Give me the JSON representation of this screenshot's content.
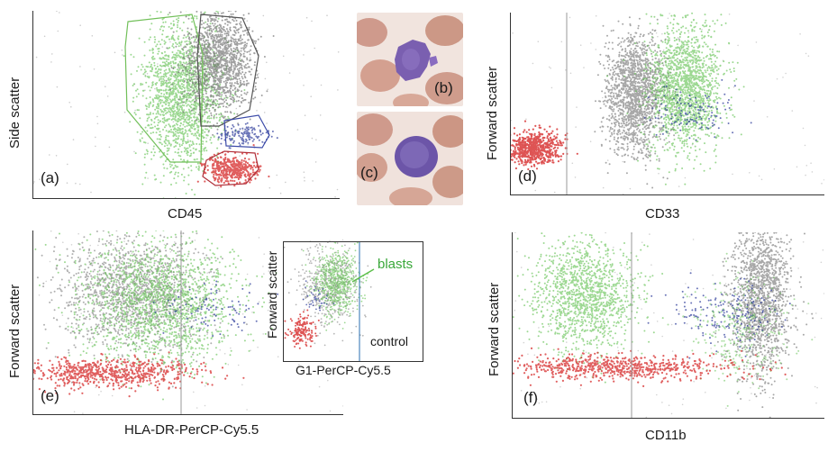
{
  "panels": {
    "a": {
      "label": "(a)",
      "ylabel": "Side scatter",
      "xlabel": "CD45"
    },
    "b": {
      "label": "(b)"
    },
    "c": {
      "label": "(c)"
    },
    "d": {
      "label": "(d)",
      "ylabel": "Forward scatter",
      "xlabel": "CD33"
    },
    "e": {
      "label": "(e)",
      "ylabel": "Forward scatter",
      "xlabel": "HLA-DR-PerCP-Cy5.5"
    },
    "e_inset": {
      "ylabel": "Forward scatter",
      "xlabel": "G1-PerCP-Cy5.5",
      "blasts_label": "blasts",
      "control_label": "control"
    },
    "f": {
      "label": "(f)",
      "ylabel": "Forward scatter",
      "xlabel": "CD11b"
    }
  },
  "colors": {
    "green": "#5cbf4a",
    "gray": "#6e6e6e",
    "blue": "#2c3a9a",
    "red": "#d62a2a",
    "gate_green": "#72c05a",
    "gate_gray": "#555555",
    "gate_blue": "#3b4aa8",
    "gate_red": "#b0303a"
  }
}
